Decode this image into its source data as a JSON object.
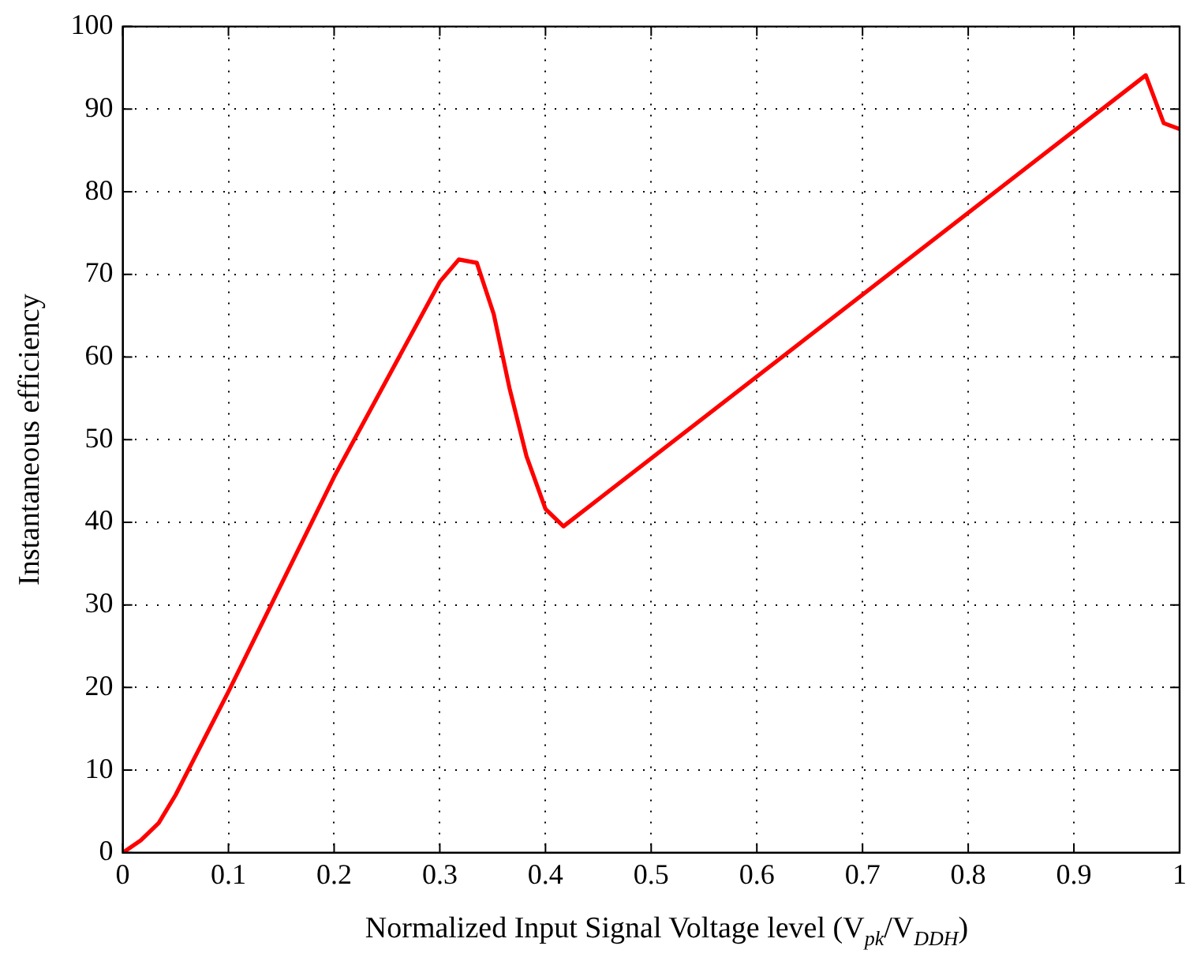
{
  "chart_data": {
    "type": "line",
    "xlabel": "Normalized Input Signal Voltage level (V$_{pk}$/V$_{DDH}$)",
    "ylabel": "Instantaneous efficiency",
    "x": [
      0,
      0.017,
      0.034,
      0.05,
      0.1,
      0.2,
      0.3,
      0.318,
      0.335,
      0.351,
      0.366,
      0.382,
      0.4,
      0.417,
      0.968,
      0.985,
      1
    ],
    "series": [
      {
        "color": "#ff0000",
        "values": [
          0,
          1.5,
          3.6,
          7,
          19.5,
          45.5,
          69.1,
          71.8,
          71.4,
          65.2,
          56.2,
          48,
          41.6,
          39.5,
          94.1,
          88.3,
          87.6
        ]
      }
    ],
    "xlim": [
      0,
      1
    ],
    "xticks": [
      0,
      0.1,
      0.2,
      0.3,
      0.4,
      0.5,
      0.6,
      0.7,
      0.8,
      0.9,
      1
    ],
    "ylim": [
      0,
      100
    ],
    "yticks": [
      0,
      10,
      20,
      30,
      40,
      50,
      60,
      70,
      80,
      90,
      100
    ],
    "grid": true,
    "legend": false,
    "marker": "none",
    "line_style": "solid"
  }
}
